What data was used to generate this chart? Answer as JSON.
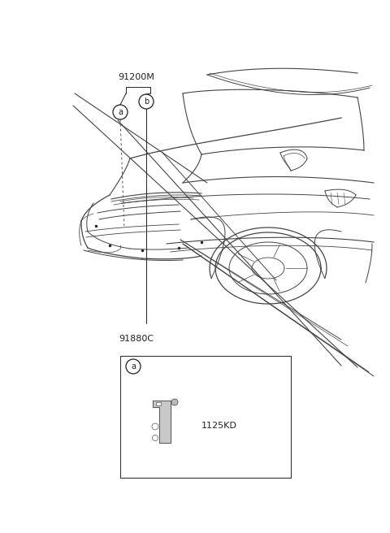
{
  "background_color": "#ffffff",
  "label_91200M": "91200M",
  "label_91880C": "91880C",
  "label_1125KD": "1125KD",
  "label_a": "a",
  "label_b": "b",
  "car_color": "#444444",
  "ann_color": "#222222",
  "dash_color": "#555555",
  "box_color": "#333333",
  "part_fill": "#aaaaaa",
  "part_stroke": "#555555",
  "figsize": [
    4.8,
    6.56
  ],
  "dpi": 100
}
